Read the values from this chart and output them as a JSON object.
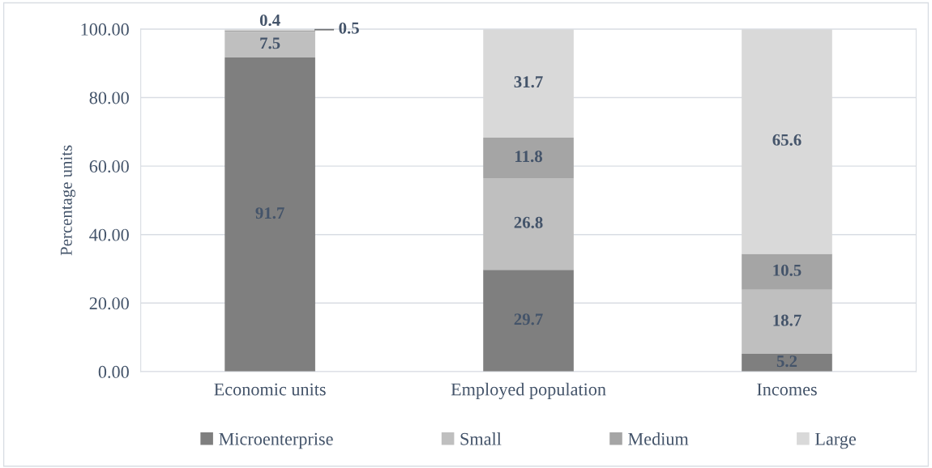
{
  "chart_data": {
    "type": "bar",
    "stacked": true,
    "ylabel": "Percentage units",
    "categories": [
      "Economic units",
      "Employed population",
      "Incomes"
    ],
    "series": [
      {
        "name": "Microenterprise",
        "color": "#7f7f7f",
        "values": [
          91.7,
          29.7,
          5.2
        ]
      },
      {
        "name": "Small",
        "color": "#bfbfbf",
        "values": [
          7.5,
          26.8,
          18.7
        ]
      },
      {
        "name": "Medium",
        "color": "#a5a5a5",
        "values": [
          0.4,
          11.8,
          10.5
        ]
      },
      {
        "name": "Large",
        "color": "#d9d9d9",
        "values": [
          0.5,
          31.7,
          65.6
        ]
      }
    ],
    "ylim": [
      0,
      100
    ],
    "yticks": [
      {
        "value": 0,
        "label": "0.00"
      },
      {
        "value": 20,
        "label": "20.00"
      },
      {
        "value": 40,
        "label": "40.00"
      },
      {
        "value": 60,
        "label": "60.00"
      },
      {
        "value": 80,
        "label": "80.00"
      },
      {
        "value": 100,
        "label": "100.00"
      }
    ],
    "grid": "y",
    "legend": "bottom",
    "data_labels": true
  }
}
